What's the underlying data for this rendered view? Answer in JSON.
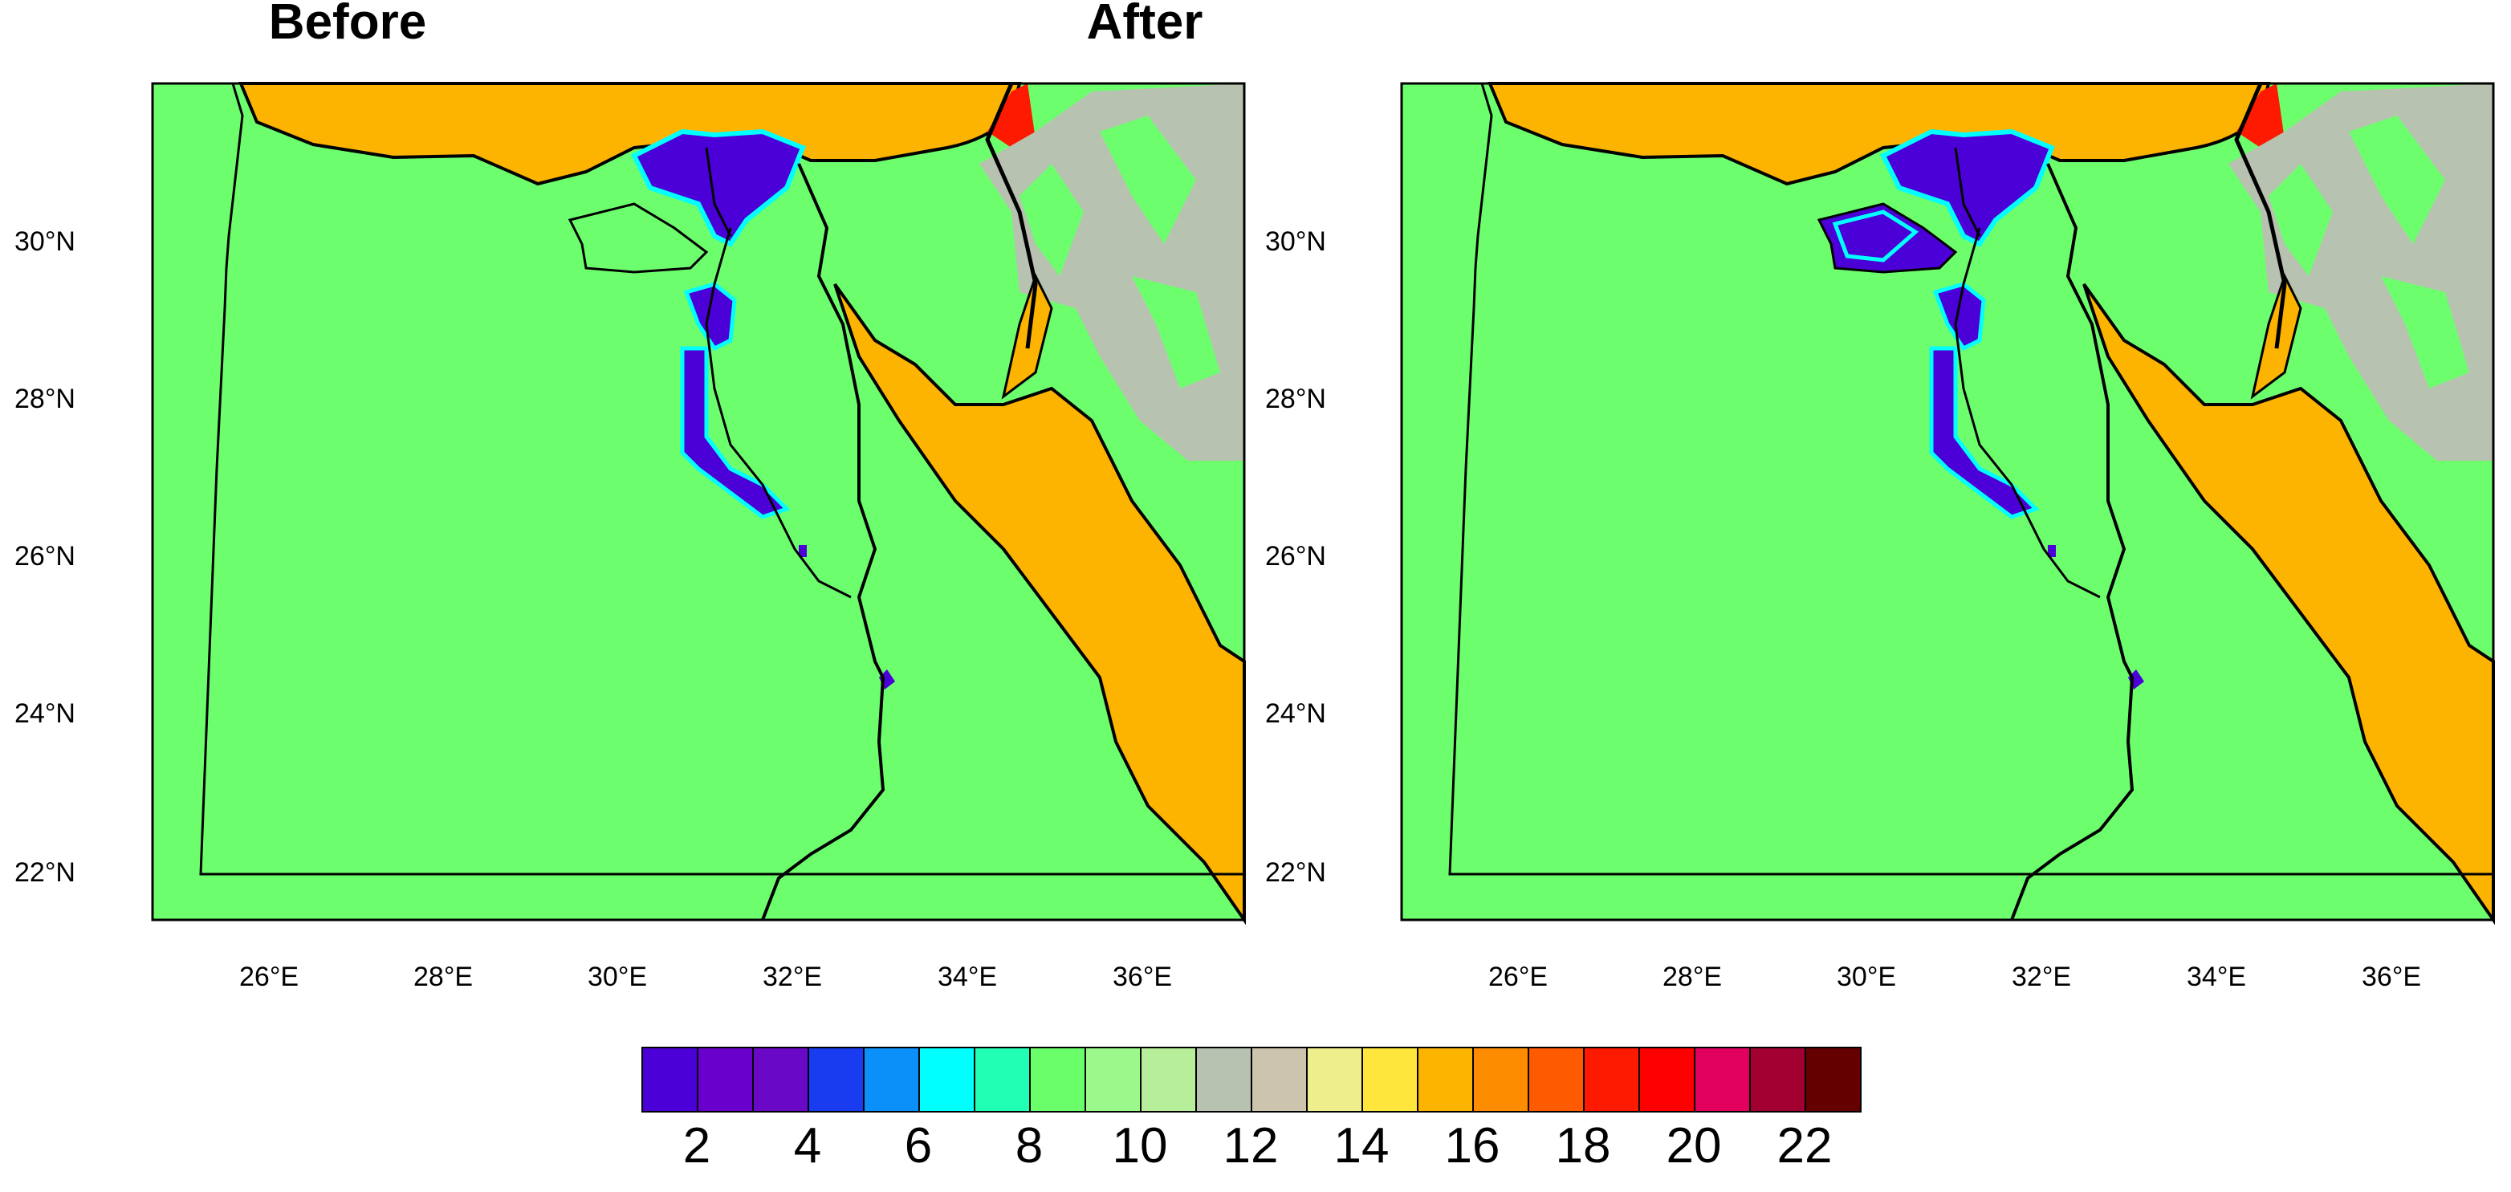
{
  "panels": [
    {
      "title": "Before"
    },
    {
      "title": "After"
    }
  ],
  "axes": {
    "lat_ticks": [
      "30°N",
      "28°N",
      "26°N",
      "24°N",
      "22°N"
    ],
    "lon_ticks": [
      "26°E",
      "28°E",
      "30°E",
      "32°E",
      "34°E",
      "36°E"
    ],
    "lon_range": [
      24.5,
      37.0
    ],
    "lat_range": [
      21.5,
      32.0
    ]
  },
  "colorbar": {
    "labels": [
      "2",
      "4",
      "6",
      "8",
      "10",
      "12",
      "14",
      "16",
      "18",
      "20",
      "22"
    ],
    "colors": [
      "#4B00D8",
      "#6A00CC",
      "#6A08C8",
      "#1A3CF0",
      "#0A90F8",
      "#00FFFF",
      "#20FFB4",
      "#6AFF6A",
      "#9AF98A",
      "#B6EE9A",
      "#B8C2B0",
      "#CCC4AC",
      "#EEEE8C",
      "#FEE63C",
      "#FDB400",
      "#FD8C00",
      "#FE5A00",
      "#FE1A00",
      "#FE0000",
      "#E2005E",
      "#A20030",
      "#640000"
    ]
  },
  "colors": {
    "land": "#6DFE6E",
    "sea": "#FDB400",
    "lake": "#4B00D8",
    "mountain_gray": "#B8C2B0",
    "red_patch": "#FE1A00"
  }
}
